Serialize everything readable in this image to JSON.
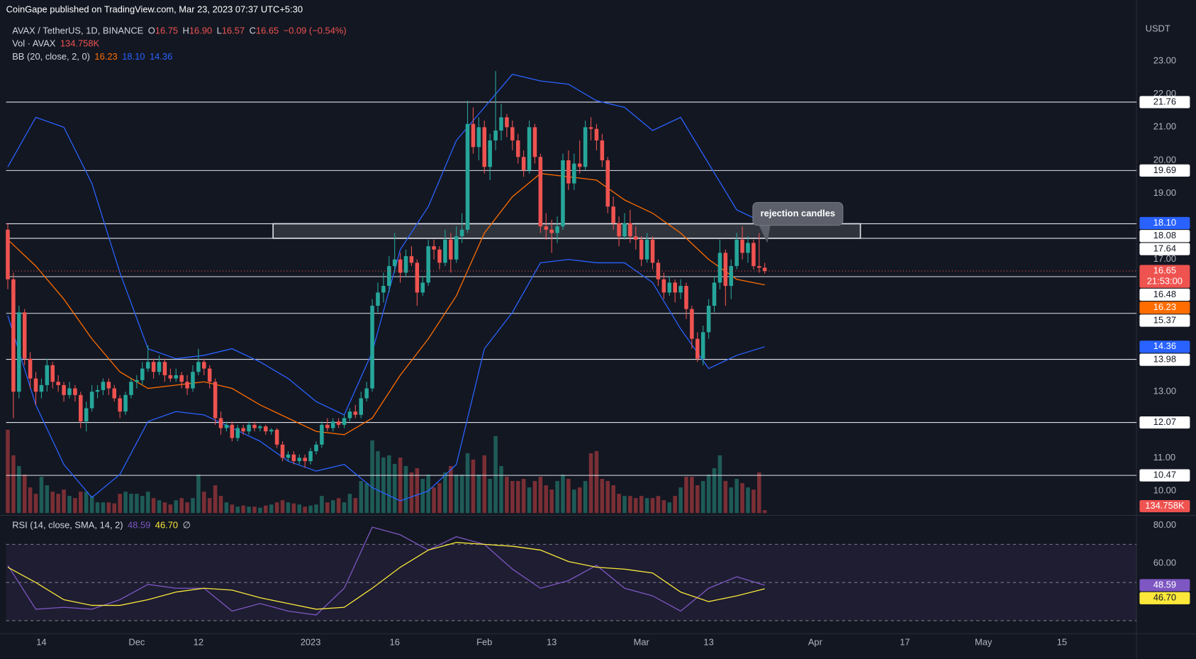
{
  "publisher": "CoinGape published on TradingView.com, Mar 23, 2023 07:37 UTC+5:30",
  "annotation": "rejection candles",
  "chart_data": [
    {
      "type": "candlestick",
      "symbol": "AVAX / TetherUS, 1D, BINANCE",
      "currency": "USDT",
      "ohlc_letters": [
        "O",
        "H",
        "L",
        "C"
      ],
      "ohlc_value_labels": [
        "16.75",
        "16.90",
        "16.57",
        "16.65"
      ],
      "change_label": "−0.09 (−0.54%)",
      "countdown": "21:53:00",
      "up_color": "#26a69a",
      "down_color": "#ef5350",
      "volume_up_color": "#1e5b57",
      "volume_down_color": "#7a2f35",
      "xlim": [
        -0.3,
        201.3
      ],
      "xticks": [
        {
          "value": 6,
          "label": "14"
        },
        {
          "value": 23,
          "label": "Dec"
        },
        {
          "value": 34,
          "label": "12"
        },
        {
          "value": 54,
          "label": "2023"
        },
        {
          "value": 69,
          "label": "16"
        },
        {
          "value": 85,
          "label": "Feb"
        },
        {
          "value": 97,
          "label": "13"
        },
        {
          "value": 113,
          "label": "Mar"
        },
        {
          "value": 125,
          "label": "13"
        },
        {
          "value": 144,
          "label": "Apr"
        },
        {
          "value": 160,
          "label": "17"
        },
        {
          "value": 174,
          "label": "May"
        },
        {
          "value": 188,
          "label": "15"
        }
      ],
      "ylim": [
        9.33,
        24.15
      ],
      "yticks": [
        {
          "value": 10,
          "label": "10.00"
        },
        {
          "value": 11,
          "label": "11.00"
        },
        {
          "value": 13,
          "label": "13.00"
        },
        {
          "value": 17,
          "label": "17.00"
        },
        {
          "value": 19,
          "label": "19.00"
        },
        {
          "value": 20,
          "label": "20.00"
        },
        {
          "value": 21,
          "label": "21.00"
        },
        {
          "value": 22,
          "label": "22.00"
        },
        {
          "value": 23,
          "label": "23.00"
        }
      ],
      "levels": [
        21.76,
        19.69,
        18.08,
        17.64,
        16.48,
        15.37,
        13.98,
        12.07,
        10.47
      ],
      "level_color": "#e0e3eb",
      "candles": [
        [
          17.9,
          18.1,
          16.1,
          16.4
        ],
        [
          16.4,
          16.6,
          12.2,
          13.0
        ],
        [
          13.0,
          15.6,
          12.8,
          15.4
        ],
        [
          15.4,
          15.5,
          13.8,
          14.0
        ],
        [
          14.0,
          14.2,
          13.1,
          13.4
        ],
        [
          13.4,
          13.6,
          12.6,
          13.0
        ],
        [
          13.0,
          13.4,
          12.8,
          13.2
        ],
        [
          13.2,
          14.0,
          13.0,
          13.8
        ],
        [
          13.8,
          13.9,
          13.1,
          13.3
        ],
        [
          13.3,
          13.5,
          13.0,
          13.2
        ],
        [
          13.2,
          13.3,
          12.7,
          12.9
        ],
        [
          12.9,
          13.3,
          12.8,
          13.1
        ],
        [
          13.1,
          13.2,
          12.7,
          12.9
        ],
        [
          12.9,
          13.0,
          11.9,
          12.1
        ],
        [
          12.1,
          12.7,
          11.8,
          12.5
        ],
        [
          12.5,
          13.2,
          12.4,
          13.0
        ],
        [
          13.0,
          13.2,
          12.8,
          13.05
        ],
        [
          13.05,
          13.4,
          12.9,
          13.3
        ],
        [
          13.3,
          13.4,
          12.9,
          13.1
        ],
        [
          13.1,
          13.2,
          12.7,
          12.8
        ],
        [
          12.8,
          12.9,
          12.2,
          12.4
        ],
        [
          12.4,
          13.0,
          12.3,
          12.9
        ],
        [
          12.9,
          13.4,
          12.8,
          13.3
        ],
        [
          13.3,
          13.5,
          13.1,
          13.35
        ],
        [
          13.35,
          13.9,
          13.2,
          13.7
        ],
        [
          13.7,
          14.4,
          13.6,
          13.9
        ],
        [
          13.9,
          14.0,
          13.4,
          13.6
        ],
        [
          13.6,
          14.1,
          13.5,
          13.9
        ],
        [
          13.9,
          14.0,
          13.3,
          13.5
        ],
        [
          13.5,
          13.7,
          13.3,
          13.4
        ],
        [
          13.4,
          13.7,
          13.3,
          13.5
        ],
        [
          13.5,
          13.6,
          13.1,
          13.3
        ],
        [
          13.3,
          13.5,
          12.9,
          13.1
        ],
        [
          13.1,
          13.8,
          13.0,
          13.6
        ],
        [
          13.6,
          14.3,
          13.5,
          13.9
        ],
        [
          13.9,
          14.0,
          13.5,
          13.7
        ],
        [
          13.7,
          13.8,
          13.1,
          13.3
        ],
        [
          13.3,
          13.4,
          12.0,
          12.2
        ],
        [
          12.2,
          12.4,
          11.7,
          11.9
        ],
        [
          11.9,
          12.1,
          11.8,
          12.0
        ],
        [
          12.0,
          12.1,
          11.5,
          11.6
        ],
        [
          11.6,
          12.0,
          11.5,
          11.9
        ],
        [
          11.9,
          12.0,
          11.7,
          11.8
        ],
        [
          11.8,
          12.1,
          11.7,
          12.0
        ],
        [
          12.0,
          12.1,
          11.8,
          11.9
        ],
        [
          11.9,
          12.0,
          11.8,
          11.95
        ],
        [
          11.95,
          12.0,
          11.7,
          11.8
        ],
        [
          11.8,
          11.9,
          11.7,
          11.85
        ],
        [
          11.85,
          11.9,
          11.3,
          11.4
        ],
        [
          11.4,
          11.5,
          10.9,
          11.0
        ],
        [
          11.0,
          11.2,
          10.9,
          11.1
        ],
        [
          11.1,
          11.2,
          10.8,
          10.9
        ],
        [
          10.9,
          11.1,
          10.8,
          11.0
        ],
        [
          11.0,
          11.1,
          10.7,
          10.9
        ],
        [
          10.9,
          11.3,
          10.8,
          11.2
        ],
        [
          11.2,
          11.5,
          11.1,
          11.4
        ],
        [
          11.4,
          12.1,
          11.3,
          12.0
        ],
        [
          12.0,
          12.2,
          11.8,
          11.9
        ],
        [
          11.9,
          12.2,
          11.8,
          12.1
        ],
        [
          12.1,
          12.2,
          11.9,
          12.0
        ],
        [
          12.0,
          12.3,
          11.9,
          12.2
        ],
        [
          12.2,
          12.5,
          12.1,
          12.4
        ],
        [
          12.4,
          12.6,
          12.2,
          12.3
        ],
        [
          12.3,
          13.0,
          12.2,
          12.8
        ],
        [
          12.8,
          13.3,
          12.7,
          13.1
        ],
        [
          13.1,
          15.8,
          13.0,
          15.6
        ],
        [
          15.6,
          16.3,
          15.4,
          16.0
        ],
        [
          16.0,
          16.6,
          15.7,
          16.2
        ],
        [
          16.2,
          17.1,
          16.0,
          16.8
        ],
        [
          16.8,
          17.8,
          16.6,
          17.0
        ],
        [
          17.0,
          17.2,
          16.3,
          16.6
        ],
        [
          16.6,
          17.3,
          16.5,
          17.1
        ],
        [
          17.1,
          17.4,
          16.8,
          16.9
        ],
        [
          16.9,
          17.0,
          15.6,
          16.0
        ],
        [
          16.0,
          16.5,
          15.9,
          16.3
        ],
        [
          16.3,
          17.6,
          16.2,
          17.4
        ],
        [
          17.4,
          17.6,
          17.0,
          17.3
        ],
        [
          17.3,
          17.4,
          16.7,
          16.9
        ],
        [
          16.9,
          17.9,
          16.8,
          17.6
        ],
        [
          17.6,
          17.8,
          16.6,
          17.0
        ],
        [
          17.0,
          18.0,
          16.9,
          17.7
        ],
        [
          17.7,
          18.4,
          17.5,
          17.9
        ],
        [
          17.9,
          21.8,
          17.8,
          21.1
        ],
        [
          21.1,
          21.6,
          20.2,
          20.4
        ],
        [
          20.4,
          21.3,
          20.0,
          21.0
        ],
        [
          21.0,
          21.2,
          19.6,
          19.8
        ],
        [
          19.8,
          20.8,
          19.4,
          20.6
        ],
        [
          20.6,
          22.7,
          20.3,
          20.9
        ],
        [
          20.9,
          21.7,
          20.6,
          21.3
        ],
        [
          21.3,
          21.4,
          20.7,
          21.0
        ],
        [
          21.0,
          21.2,
          20.3,
          20.6
        ],
        [
          20.6,
          20.8,
          19.9,
          20.1
        ],
        [
          20.1,
          20.3,
          19.5,
          19.7
        ],
        [
          19.7,
          21.2,
          19.6,
          21.0
        ],
        [
          21.0,
          21.1,
          19.9,
          20.1
        ],
        [
          20.1,
          20.2,
          17.8,
          18.0
        ],
        [
          18.0,
          18.4,
          17.6,
          17.9
        ],
        [
          17.9,
          18.2,
          17.2,
          17.8
        ],
        [
          17.8,
          18.3,
          17.5,
          18.0
        ],
        [
          18.0,
          20.2,
          17.9,
          20.0
        ],
        [
          20.0,
          20.3,
          19.1,
          19.3
        ],
        [
          19.3,
          20.2,
          19.1,
          19.9
        ],
        [
          19.9,
          20.6,
          19.6,
          19.8
        ],
        [
          19.8,
          21.2,
          19.7,
          21.0
        ],
        [
          21.0,
          21.3,
          20.6,
          20.95
        ],
        [
          20.95,
          21.1,
          20.3,
          20.6
        ],
        [
          20.6,
          20.8,
          19.8,
          20.0
        ],
        [
          20.0,
          20.1,
          18.4,
          18.6
        ],
        [
          18.6,
          18.9,
          17.9,
          18.1
        ],
        [
          18.1,
          18.3,
          17.4,
          17.7
        ],
        [
          17.7,
          18.4,
          17.6,
          18.1
        ],
        [
          18.1,
          18.5,
          17.5,
          17.7
        ],
        [
          17.7,
          18.0,
          17.3,
          17.6
        ],
        [
          17.6,
          17.7,
          16.8,
          17.0
        ],
        [
          17.0,
          17.8,
          16.9,
          17.6
        ],
        [
          17.6,
          17.7,
          16.7,
          16.9
        ],
        [
          16.9,
          17.0,
          16.2,
          16.4
        ],
        [
          16.4,
          16.6,
          15.8,
          16.0
        ],
        [
          16.0,
          16.5,
          15.9,
          16.3
        ],
        [
          16.3,
          16.4,
          15.7,
          16.0
        ],
        [
          16.0,
          16.4,
          15.8,
          16.2
        ],
        [
          16.2,
          16.3,
          15.2,
          15.5
        ],
        [
          15.5,
          15.6,
          14.3,
          14.6
        ],
        [
          14.6,
          14.8,
          13.9,
          14.0
        ],
        [
          14.0,
          15.0,
          13.8,
          14.8
        ],
        [
          14.8,
          15.8,
          14.6,
          15.6
        ],
        [
          15.6,
          16.5,
          15.4,
          16.3
        ],
        [
          16.3,
          17.6,
          16.1,
          17.2
        ],
        [
          17.2,
          17.3,
          15.6,
          16.2
        ],
        [
          16.2,
          17.0,
          15.8,
          16.8
        ],
        [
          16.8,
          17.8,
          16.7,
          17.6
        ],
        [
          17.6,
          18.0,
          17.0,
          17.2
        ],
        [
          17.2,
          17.7,
          16.9,
          17.5
        ],
        [
          17.5,
          17.6,
          16.7,
          16.8
        ],
        [
          16.8,
          17.8,
          16.6,
          16.75
        ],
        [
          16.75,
          16.9,
          16.57,
          16.65
        ]
      ],
      "volume_label": "Vol · AVAX",
      "volume_ylim": [
        0,
        4000
      ],
      "volume": [
        3900,
        2700,
        2200,
        1800,
        1200,
        900,
        1700,
        1300,
        1000,
        900,
        1100,
        800,
        700,
        1000,
        1000,
        800,
        500,
        500,
        500,
        450,
        900,
        1000,
        900,
        900,
        800,
        1000,
        700,
        600,
        500,
        400,
        600,
        700,
        500,
        700,
        1800,
        1000,
        700,
        1300,
        800,
        500,
        400,
        300,
        350,
        300,
        300,
        250,
        350,
        400,
        500,
        600,
        500,
        450,
        400,
        300,
        350,
        400,
        800,
        500,
        600,
        700,
        500,
        900,
        700,
        1500,
        1400,
        3400,
        2900,
        2600,
        2700,
        2300,
        2600,
        2200,
        1900,
        2100,
        1600,
        1800,
        1200,
        1400,
        1900,
        2200,
        1800,
        1800,
        2800,
        2500,
        1800,
        2700,
        1600,
        3600,
        2200,
        1700,
        1500,
        1500,
        1600,
        1200,
        1500,
        1700,
        1300,
        1100,
        1500,
        1800,
        1600,
        1100,
        1200,
        1500,
        2800,
        2900,
        1600,
        1500,
        1300,
        900,
        800,
        800,
        700,
        800,
        700,
        700,
        800,
        600,
        500,
        800,
        1200,
        1700,
        1700,
        1300,
        1500,
        1800,
        2100,
        2700,
        1500,
        1200,
        1600,
        1400,
        1200,
        1100,
        1900,
        134.758
      ],
      "volume_last_label": "134.758K",
      "bb_label": "BB (20, close, 2, 0)",
      "bb_x": [
        0,
        5,
        10,
        15,
        20,
        25,
        30,
        35,
        40,
        45,
        50,
        55,
        60,
        65,
        70,
        75,
        80,
        85,
        90,
        95,
        100,
        105,
        110,
        115,
        120,
        125,
        130,
        135
      ],
      "bb_upper": [
        19.8,
        21.3,
        21.0,
        19.3,
        16.6,
        14.3,
        14.0,
        14.1,
        14.3,
        13.9,
        13.4,
        12.7,
        12.3,
        14.2,
        17.3,
        18.6,
        20.6,
        21.6,
        22.6,
        22.4,
        22.3,
        21.8,
        21.6,
        20.9,
        21.3,
        19.9,
        18.5,
        18.1
      ],
      "bb_middle": [
        17.6,
        16.8,
        15.8,
        14.6,
        13.6,
        13.1,
        13.2,
        13.3,
        13.1,
        12.6,
        12.2,
        11.8,
        11.7,
        12.2,
        13.5,
        14.6,
        15.9,
        17.8,
        18.9,
        19.6,
        19.5,
        19.4,
        18.8,
        18.4,
        17.8,
        17.0,
        16.4,
        16.23
      ],
      "bb_lower": [
        15.3,
        12.6,
        10.8,
        9.8,
        10.5,
        12.1,
        12.4,
        12.3,
        11.9,
        11.5,
        10.9,
        10.6,
        10.8,
        10.1,
        9.7,
        10.0,
        10.8,
        14.3,
        15.4,
        16.9,
        17.0,
        16.9,
        16.9,
        16.3,
        14.9,
        13.7,
        14.1,
        14.36
      ],
      "bb_upper_label": "18.10",
      "bb_colors": {
        "upper": "#2962ff",
        "middle": "#ff6d00",
        "lower": "#2962ff"
      }
    },
    {
      "type": "line",
      "label": "RSI (14, close, SMA, 14, 2)",
      "extra": "∅",
      "ylim": [
        23.2,
        84
      ],
      "yticks": [
        {
          "value": 80,
          "label": "80.00"
        },
        {
          "value": 60,
          "label": "60.00"
        }
      ],
      "levels": [
        70,
        50,
        30
      ],
      "x": [
        0,
        5,
        10,
        15,
        20,
        25,
        30,
        35,
        40,
        45,
        50,
        55,
        60,
        65,
        70,
        75,
        80,
        85,
        90,
        95,
        100,
        105,
        110,
        115,
        120,
        125,
        130,
        135
      ],
      "rsi": [
        59,
        36,
        37,
        36,
        41,
        49,
        47,
        47,
        35,
        39,
        35,
        33,
        47,
        79,
        75,
        67,
        74,
        70,
        57,
        47,
        51,
        59,
        47,
        43,
        35,
        47,
        53,
        48.59
      ],
      "rsi_color": "#7e57c2",
      "sma": [
        58,
        50,
        41,
        38,
        38,
        41,
        45,
        47,
        46,
        42,
        39,
        36,
        37,
        47,
        58,
        67,
        71,
        70,
        69,
        67,
        61,
        58,
        57,
        55,
        45,
        40,
        43,
        46.7
      ],
      "sma_color": "#fbe83a",
      "sma_last_label": "46.70"
    }
  ]
}
